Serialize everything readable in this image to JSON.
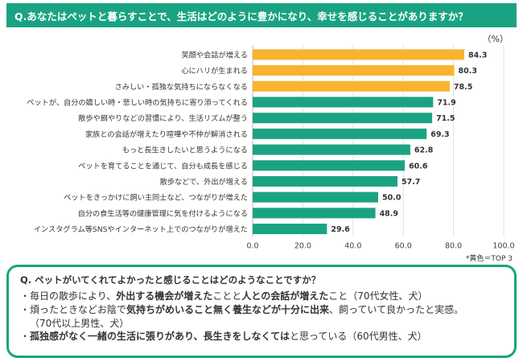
{
  "question": "Q.あなたはペットと暮らすことで、生活はどのように豊かになり、幸せを感じることがありますか？",
  "unit_label": "（%）",
  "footnote": "*黄色＝TOP 3",
  "colors": {
    "accent": "#1aa382",
    "top3": "#f8b42e",
    "bar": "#1aa382"
  },
  "chart_data": {
    "type": "bar",
    "orientation": "horizontal",
    "categories": [
      "笑顔や会話が増える",
      "心にハリが生まれる",
      "さみしい・孤独な気持ちにならなくなる",
      "ペットが、自分の嬉しい時・悲しい時の気持ちに寄り添ってくれる",
      "散歩や餌やりなどの習慣により、生活リズムが整う",
      "家族との会話が増えたり喧嘩や不仲が解消される",
      "もっと長生きしたいと思うようになる",
      "ペットを育てることを通じて、自分も成長を感じる",
      "散歩などで、外出が増える",
      "ペットをきっかけに飼い主同士など、つながりが増えた",
      "自分の食生活等の健康管理に気を付けるようになる",
      "インスタグラム等SNSやインターネット上でのつながりが増えた"
    ],
    "values": [
      84.3,
      80.3,
      78.5,
      71.9,
      71.5,
      69.3,
      62.8,
      60.6,
      57.7,
      50.0,
      48.9,
      29.6
    ],
    "value_labels": [
      "84.3",
      "80.3",
      "78.5",
      "71.9",
      "71.5",
      "69.3",
      "62.8",
      "60.6",
      "57.7",
      "50.0",
      "48.9",
      "29.6"
    ],
    "highlight_top": 3,
    "xlim": [
      0,
      100
    ],
    "xticks": [
      "0.0",
      "20.0",
      "40.0",
      "60.0",
      "80.0",
      "100.0"
    ],
    "grid": true
  },
  "comments": {
    "question": "Q. ペットがいてくれてよかったと感じることはどのようなことですか？",
    "items": [
      {
        "segments": [
          {
            "t": "・毎日の散歩により、",
            "b": false
          },
          {
            "t": "外出する機会が増えた",
            "b": true
          },
          {
            "t": "ことと",
            "b": false
          },
          {
            "t": "人との会話が増えた",
            "b": true
          },
          {
            "t": "こと（70代女性、犬）",
            "b": false
          }
        ]
      },
      {
        "segments": [
          {
            "t": "・煩ったときなどお陰で",
            "b": false
          },
          {
            "t": "気持ちがめいること無く養生などが十分に出来",
            "b": true
          },
          {
            "t": "、飼っていて良かったと実感。",
            "b": false
          }
        ],
        "cont": "（70代以上男性、犬）"
      },
      {
        "segments": [
          {
            "t": "・",
            "b": false
          },
          {
            "t": "孤独感がなく一緒の生活に張りがあり、長生きをしなくては",
            "b": true
          },
          {
            "t": "と思っている（60代男性、犬）",
            "b": false
          }
        ]
      }
    ]
  }
}
